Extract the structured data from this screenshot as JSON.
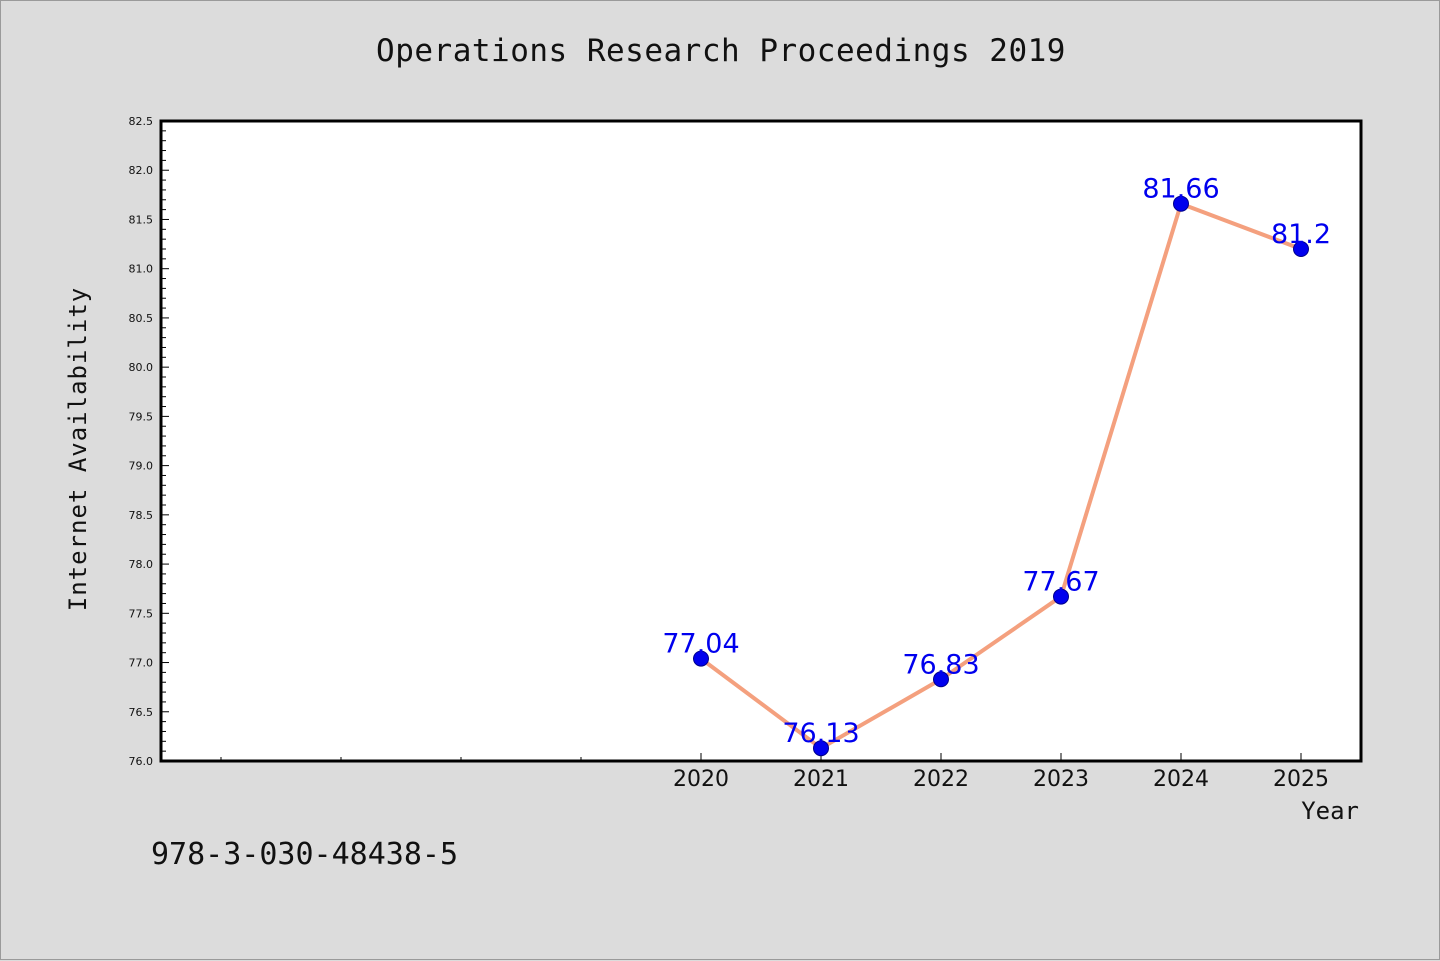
{
  "chart_data": {
    "type": "line",
    "title": "Operations Research Proceedings 2019",
    "xlabel": "Year",
    "ylabel": "Internet Availability",
    "x": [
      "2020",
      "2021",
      "2022",
      "2023",
      "2024",
      "2025"
    ],
    "values": [
      77.04,
      76.13,
      76.83,
      77.67,
      81.66,
      81.2
    ],
    "data_labels": [
      "77.04",
      "76.13",
      "76.83",
      "77.67",
      "81.66",
      "81.2"
    ],
    "ylim": [
      76.0,
      82.5
    ],
    "yticks": [
      "76.0",
      "76.5",
      "77.0",
      "77.5",
      "78.0",
      "78.5",
      "79.0",
      "79.5",
      "80.0",
      "80.5",
      "81.0",
      "81.5",
      "82.0",
      "82.5"
    ],
    "grid": false,
    "legend": "none",
    "colors": {
      "line": "#f4a07e",
      "marker": "#0000ee",
      "label": "#0000ee"
    }
  },
  "footer": {
    "isbn": "978-3-030-48438-5"
  }
}
